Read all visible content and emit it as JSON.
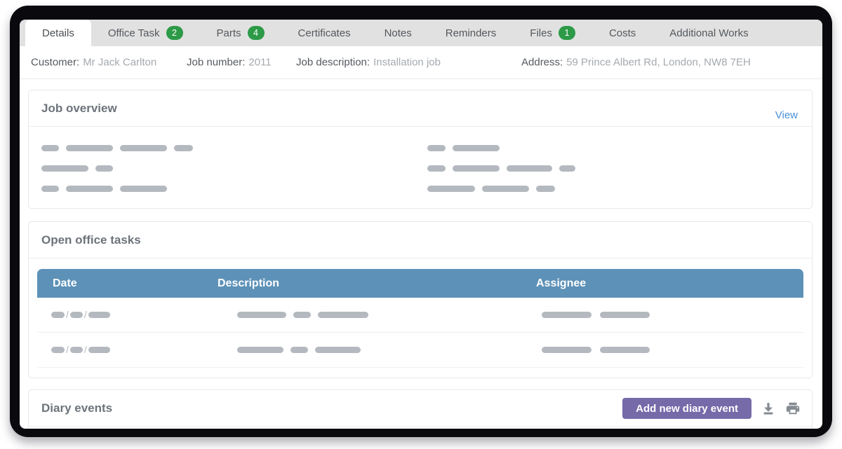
{
  "tabs": [
    {
      "label": "Details",
      "active": true
    },
    {
      "label": "Office Task",
      "badge": "2"
    },
    {
      "label": "Parts",
      "badge": "4"
    },
    {
      "label": "Certificates"
    },
    {
      "label": "Notes"
    },
    {
      "label": "Reminders"
    },
    {
      "label": "Files",
      "badge": "1"
    },
    {
      "label": "Costs"
    },
    {
      "label": "Additional Works"
    }
  ],
  "info_bar": {
    "customer": {
      "label": "Customer:",
      "value": "Mr Jack Carlton"
    },
    "job_number": {
      "label": "Job number:",
      "value": "2011"
    },
    "job_description": {
      "label": "Job description:",
      "value": "Installation job"
    },
    "address": {
      "label": "Address:",
      "value": "59 Prince Albert Rd, London, NW8 7EH"
    }
  },
  "job_overview": {
    "title": "Job overview",
    "view_link": "View",
    "left_rows": [
      [
        25,
        67,
        67,
        27
      ],
      [
        67,
        25
      ],
      [
        25,
        67,
        67
      ]
    ],
    "right_rows": [
      [
        26,
        67
      ],
      [
        26,
        67,
        65,
        23
      ],
      [
        68,
        67,
        27
      ]
    ]
  },
  "open_office_tasks": {
    "title": "Open office tasks",
    "columns": [
      "Date",
      "Description",
      "Assignee"
    ],
    "date_separator": "/",
    "rows": [
      {
        "date_bars": [
          19,
          18,
          31
        ],
        "description_bars": [
          70,
          25,
          72
        ],
        "assignee_bars": [
          71,
          71
        ]
      },
      {
        "date_bars": [
          19,
          18,
          31
        ],
        "description_bars": [
          66,
          25,
          65
        ],
        "assignee_bars": [
          71,
          71
        ]
      }
    ]
  },
  "diary_events": {
    "title": "Diary events",
    "add_button_label": "Add new diary event",
    "action_icons": [
      "download-icon",
      "print-icon"
    ]
  },
  "colors": {
    "frame_dark": "#0a0a0e",
    "badge_green": "#2c9a47",
    "accent_blue_link": "#4a90d8",
    "table_header_blue": "#5d91b7",
    "button_purple": "#766aa9",
    "placeholder_gray": "#b4b9bf"
  }
}
